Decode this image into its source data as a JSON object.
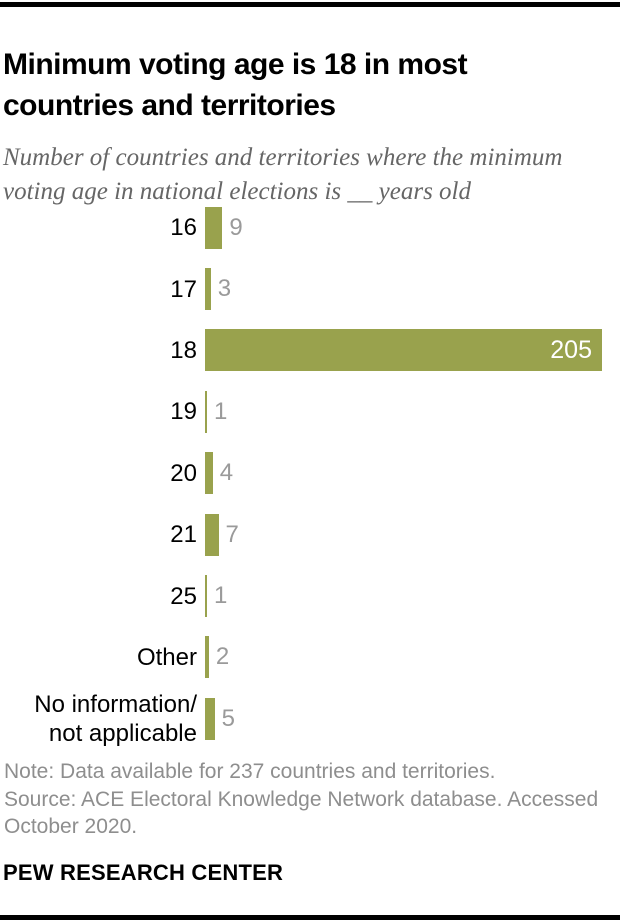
{
  "header": {
    "title": "Minimum voting age is 18 in most\ncountries and territories",
    "subtitle": "Number of countries and territories where the minimum voting age in national elections is __ years old"
  },
  "chart_data": {
    "type": "bar",
    "orientation": "horizontal",
    "title": "Minimum voting age is 18 in most countries and territories",
    "subtitle": "Number of countries and territories where the minimum voting age in national elections is __ years old",
    "categories": [
      "16",
      "17",
      "18",
      "19",
      "20",
      "21",
      "25",
      "Other",
      "No information/\nnot applicable"
    ],
    "values": [
      9,
      3,
      205,
      1,
      4,
      7,
      1,
      2,
      5
    ],
    "value_axis_max": 205,
    "grid": false,
    "legend": false,
    "bar_color": "#99a24d",
    "value_label_color": "#9a9a9a",
    "inside_value_label_color": "#ffffff"
  },
  "notes": {
    "note": "Note: Data available for 237 countries and territories.",
    "source": "Source: ACE Electoral Knowledge Network database. Accessed\nOctober 2020."
  },
  "footer": {
    "brand": "PEW RESEARCH CENTER"
  }
}
